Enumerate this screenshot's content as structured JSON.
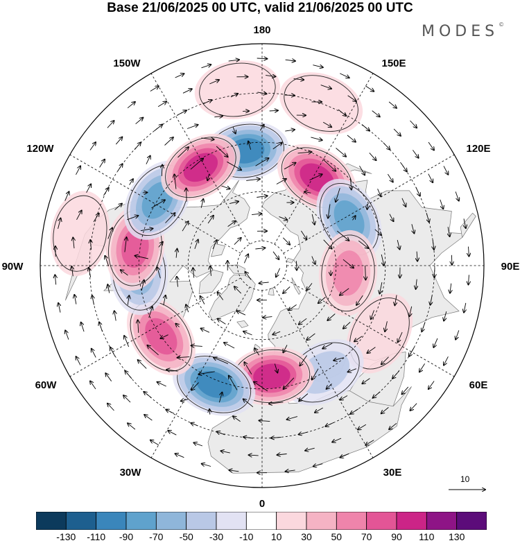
{
  "header": {
    "title": "Base 21/06/2025 00 UTC, valid 21/06/2025 00 UTC",
    "logo_text": "MODES",
    "logo_mark": "©"
  },
  "map": {
    "projection": "north-polar-stereographic",
    "center_lat": 90,
    "longitude_labels": [
      {
        "id": "lon-180",
        "text": "180",
        "lon": 180
      },
      {
        "id": "lon-150e",
        "text": "150E",
        "lon": 150
      },
      {
        "id": "lon-120e",
        "text": "120E",
        "lon": 120
      },
      {
        "id": "lon-90e",
        "text": "90E",
        "lon": 90
      },
      {
        "id": "lon-60e",
        "text": "60E",
        "lon": 60
      },
      {
        "id": "lon-30e",
        "text": "30E",
        "lon": 30
      },
      {
        "id": "lon-0",
        "text": "0",
        "lon": 0
      },
      {
        "id": "lon-30w",
        "text": "30W",
        "lon": -30
      },
      {
        "id": "lon-60w",
        "text": "60W",
        "lon": -60
      },
      {
        "id": "lon-90w",
        "text": "90W",
        "lon": -90
      },
      {
        "id": "lon-120w",
        "text": "120W",
        "lon": -120
      },
      {
        "id": "lon-150w",
        "text": "150W",
        "lon": -150
      }
    ],
    "meridian_step_deg": 30,
    "parallel_lats_deg": [
      80,
      60,
      40,
      20
    ],
    "ocean_color": "#ffffff",
    "land_color": "#ebebeb",
    "coast_color": "#777777",
    "anomaly_centers": [
      {
        "lon": -172,
        "lat": 43,
        "value": -95
      },
      {
        "lon": 148,
        "lat": 48,
        "value": 105
      },
      {
        "lon": 118,
        "lat": 50,
        "value": -75
      },
      {
        "lon": 85,
        "lat": 55,
        "value": 65
      },
      {
        "lon": 60,
        "lat": 35,
        "value": 20
      },
      {
        "lon": 30,
        "lat": 40,
        "value": -35
      },
      {
        "lon": 5,
        "lat": 45,
        "value": 95
      },
      {
        "lon": -22,
        "lat": 38,
        "value": -105
      },
      {
        "lon": -55,
        "lat": 40,
        "value": 70
      },
      {
        "lon": -87,
        "lat": 40,
        "value": -55
      },
      {
        "lon": -98,
        "lat": 38,
        "value": 85
      },
      {
        "lon": -122,
        "lat": 40,
        "value": -75
      },
      {
        "lon": -148,
        "lat": 43,
        "value": 95
      },
      {
        "lon": -172,
        "lat": 18,
        "value": 20
      },
      {
        "lon": 160,
        "lat": 20,
        "value": 20
      },
      {
        "lon": -100,
        "lat": 15,
        "value": 20
      }
    ],
    "wind_reference": {
      "label": "10",
      "speed": 10
    }
  },
  "colorbar": {
    "colors": [
      "#0c3a5c",
      "#1d5f8f",
      "#3a86bb",
      "#5fa2cd",
      "#8fb6da",
      "#b9c8e6",
      "#e2e2f3",
      "#ffffff",
      "#fbd8de",
      "#f5b3c4",
      "#ef84ab",
      "#e35596",
      "#cc2487",
      "#8e1486",
      "#5c0c7a"
    ],
    "tick_labels": [
      "-130",
      "-110",
      "-90",
      "-70",
      "-50",
      "-30",
      "-10",
      "10",
      "30",
      "50",
      "70",
      "90",
      "110",
      "130"
    ],
    "levels": [
      -130,
      -110,
      -90,
      -70,
      -50,
      -30,
      -10,
      10,
      30,
      50,
      70,
      90,
      110,
      130
    ]
  }
}
